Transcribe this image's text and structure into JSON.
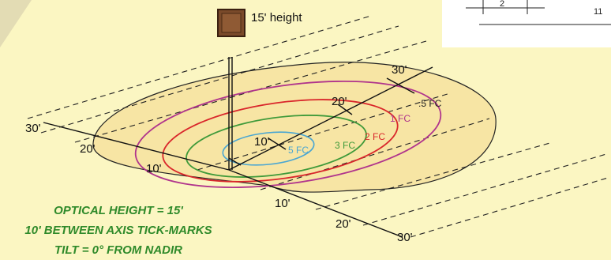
{
  "fixture": {
    "height_label": "15' height"
  },
  "axis_labels": {
    "left": [
      "30'",
      "20'",
      "10'"
    ],
    "front": [
      "10'",
      "20'",
      "30'"
    ],
    "main": [
      "10'",
      "20'",
      "30'"
    ]
  },
  "isolines": [
    {
      "label": ".5 FC",
      "color": "#222222"
    },
    {
      "label": "1 FC",
      "color": "#b0348c"
    },
    {
      "label": "2 FC",
      "color": "#d9262b"
    },
    {
      "label": "3 FC",
      "color": "#3f9a3a"
    },
    {
      "label": "5 FC",
      "color": "#4aa6d2"
    }
  ],
  "corner": {
    "dim_left": "2",
    "dim_right": "11"
  },
  "notes": [
    "OPTICAL HEIGHT = 15'",
    "10' BETWEEN AXIS TICK-MARKS",
    "TILT = 0° FROM NADIR"
  ],
  "colors": {
    "background": "#fbf6c2",
    "footprint": "#f7e5a4",
    "notes": "#2f8a2a"
  }
}
